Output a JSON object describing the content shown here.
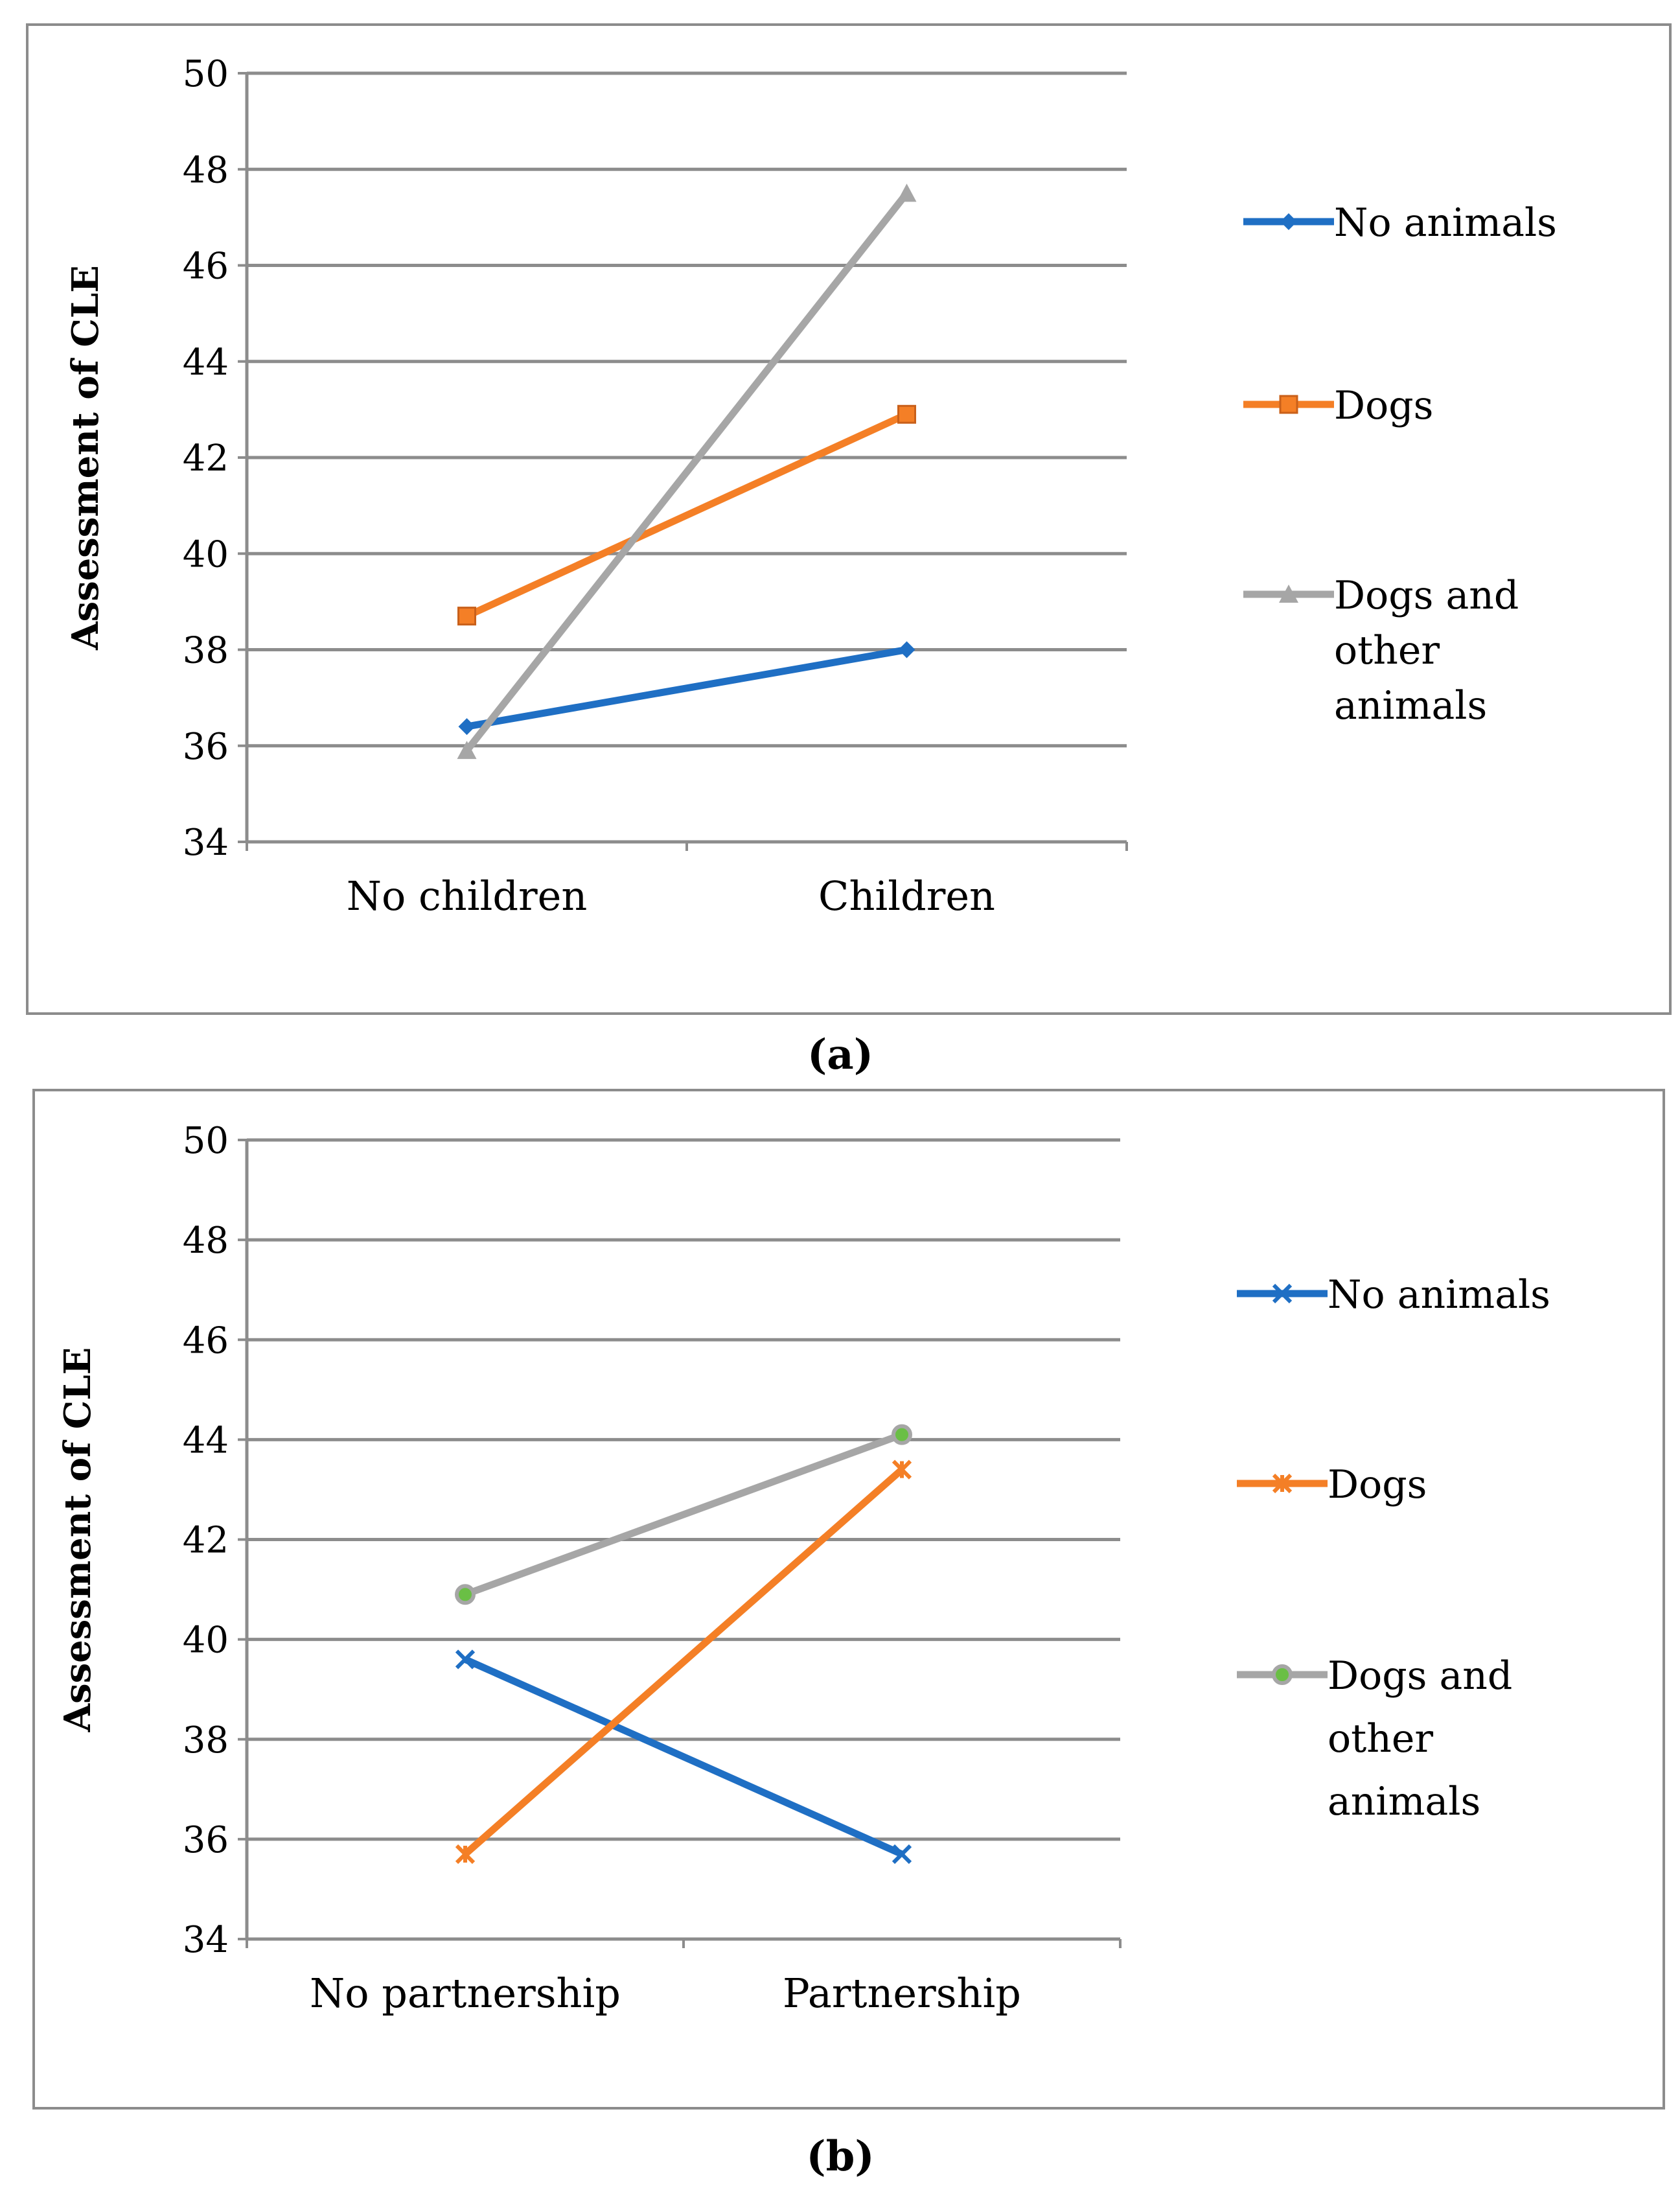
{
  "chart_data": [
    {
      "type": "line",
      "panel_label": "(a)",
      "ylabel": "Assessment of CLE",
      "ylim": [
        34,
        50
      ],
      "yticks": [
        34,
        36,
        38,
        40,
        42,
        44,
        46,
        48,
        50
      ],
      "categories": [
        "No children",
        "Children"
      ],
      "grid": true,
      "legend_position": "right",
      "series": [
        {
          "name": "No animals",
          "values": [
            36.4,
            38.0
          ],
          "color": "#1f6fc4",
          "marker": "diamond"
        },
        {
          "name": "Dogs",
          "values": [
            38.7,
            42.9
          ],
          "color": "#f47f26",
          "marker": "square"
        },
        {
          "name": "Dogs and other animals",
          "legend_lines": [
            "Dogs and",
            "other",
            "animals"
          ],
          "values": [
            35.9,
            47.5
          ],
          "color": "#a6a6a6",
          "marker": "triangle"
        }
      ]
    },
    {
      "type": "line",
      "panel_label": "(b)",
      "ylabel": "Assessment of CLE",
      "ylim": [
        34,
        50
      ],
      "yticks": [
        34,
        36,
        38,
        40,
        42,
        44,
        46,
        48,
        50
      ],
      "categories": [
        "No partnership",
        "Partnership"
      ],
      "grid": true,
      "legend_position": "right",
      "series": [
        {
          "name": "No animals",
          "values": [
            39.6,
            35.7
          ],
          "color": "#1f6fc4",
          "marker": "x"
        },
        {
          "name": "Dogs",
          "values": [
            35.7,
            43.4
          ],
          "color": "#f47f26",
          "marker": "star"
        },
        {
          "name": "Dogs and other animals",
          "legend_lines": [
            "Dogs and",
            "other",
            "animals"
          ],
          "values": [
            40.9,
            44.1
          ],
          "color": "#a6a6a6",
          "marker": "circle",
          "marker_fill": "#6abf45"
        }
      ]
    }
  ]
}
